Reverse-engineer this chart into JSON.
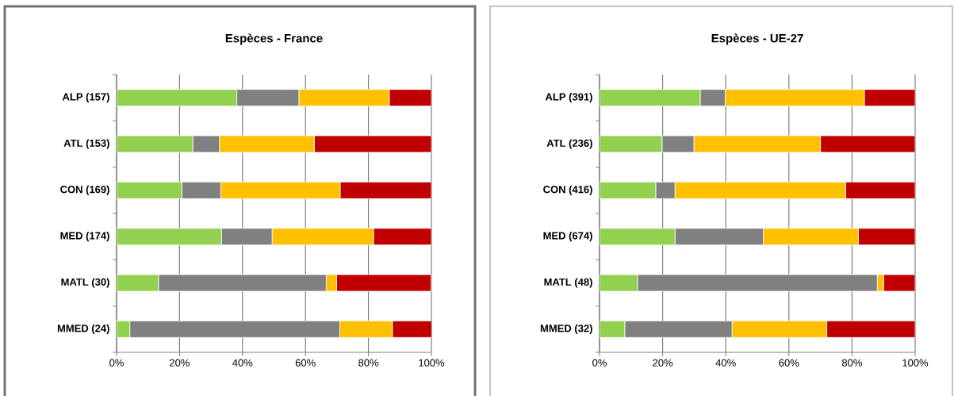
{
  "chart_data": [
    {
      "type": "bar",
      "orientation": "horizontal",
      "stacked": true,
      "title": "Espèces - France",
      "categories": [
        "ALP (157)",
        "ATL (153)",
        "CON (169)",
        "MED (174)",
        "MATL (30)",
        "MMED (24)"
      ],
      "series": [
        {
          "color": "#92d050",
          "values": [
            38.2,
            24.2,
            20.7,
            33.3,
            13.3,
            4.2
          ]
        },
        {
          "color": "#808080",
          "values": [
            19.7,
            8.5,
            12.4,
            16.1,
            53.3,
            66.7
          ]
        },
        {
          "color": "#ffc000",
          "values": [
            28.7,
            30.1,
            37.9,
            32.2,
            3.3,
            16.7
          ]
        },
        {
          "color": "#c00000",
          "values": [
            13.4,
            37.2,
            29.0,
            18.4,
            30.0,
            12.5
          ]
        }
      ],
      "xlim": [
        0,
        100
      ],
      "xticks": [
        {
          "value": 0,
          "label": "0%"
        },
        {
          "value": 20,
          "label": "20%"
        },
        {
          "value": 40,
          "label": "40%"
        },
        {
          "value": 60,
          "label": "60%"
        },
        {
          "value": 80,
          "label": "80%"
        },
        {
          "value": 100,
          "label": "100%"
        }
      ],
      "grid": "x"
    },
    {
      "type": "bar",
      "orientation": "horizontal",
      "stacked": true,
      "title": "Espèces - UE-27",
      "categories": [
        "ALP (391)",
        "ATL (236)",
        "CON (416)",
        "MED (674)",
        "MATL (48)",
        "MMED (32)"
      ],
      "series": [
        {
          "color": "#92d050",
          "values": [
            31.9,
            19.8,
            17.8,
            23.9,
            12.0,
            8.0
          ]
        },
        {
          "color": "#808080",
          "values": [
            7.9,
            10.1,
            6.1,
            28.0,
            76.0,
            34.0
          ]
        },
        {
          "color": "#ffc000",
          "values": [
            44.1,
            40.1,
            54.1,
            30.1,
            2.0,
            30.0
          ]
        },
        {
          "color": "#c00000",
          "values": [
            16.1,
            30.0,
            22.0,
            18.0,
            10.0,
            28.0
          ]
        }
      ],
      "xlim": [
        0,
        100
      ],
      "xticks": [
        {
          "value": 0,
          "label": "0%"
        },
        {
          "value": 20,
          "label": "20%"
        },
        {
          "value": 40,
          "label": "40%"
        },
        {
          "value": 60,
          "label": "60%"
        },
        {
          "value": 80,
          "label": "80%"
        },
        {
          "value": 100,
          "label": "100%"
        }
      ],
      "grid": "x"
    }
  ]
}
